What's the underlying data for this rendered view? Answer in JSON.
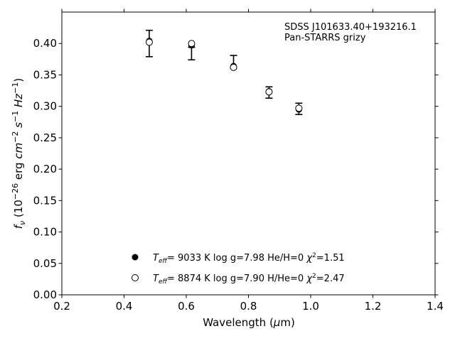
{
  "chart_data": {
    "type": "scatter",
    "annotation": {
      "object": "SDSS J101633.40+193216.1",
      "photometry": "Pan-STARRS grizy"
    },
    "xlabel": "Wavelength (μm)",
    "ylabel": "f_ν (10^-26 erg cm^-2 s^-1 Hz^-1)",
    "xlim": [
      0.2,
      1.4
    ],
    "ylim": [
      0.0,
      0.45
    ],
    "xticks": [
      "0.2",
      "0.4",
      "0.6",
      "0.8",
      "1.0",
      "1.2",
      "1.4"
    ],
    "yticks": [
      "0.00",
      "0.05",
      "0.10",
      "0.15",
      "0.20",
      "0.25",
      "0.30",
      "0.35",
      "0.40"
    ],
    "grid": false,
    "legend_placement": "lower-center",
    "observed": {
      "x": [
        0.481,
        0.617,
        0.752,
        0.866,
        0.962
      ],
      "y": [
        0.4,
        0.384,
        0.371,
        0.322,
        0.296
      ],
      "yerr": [
        0.021,
        0.01,
        0.01,
        0.009,
        0.009
      ]
    },
    "series": [
      {
        "name": "Teff= 9033 K log g=7.98 He/H=0 χ²=1.51",
        "legend_parts": {
          "temp": "9033 K",
          "logg": "log g=7.98",
          "comp": "He/H=0",
          "chisq": "=1.51"
        },
        "marker": "filled",
        "x": [
          0.481,
          0.617,
          0.752,
          0.866,
          0.962
        ],
        "y": [
          0.404,
          0.397,
          0.364,
          0.324,
          0.295
        ]
      },
      {
        "name": "Teff= 8874 K log g=7.90 H/He=0 χ²=2.47",
        "legend_parts": {
          "temp": "8874 K",
          "logg": "log g=7.90",
          "comp": "H/He=0",
          "chisq": "=2.47"
        },
        "marker": "open",
        "x": [
          0.481,
          0.617,
          0.752,
          0.866,
          0.962
        ],
        "y": [
          0.402,
          0.4,
          0.362,
          0.323,
          0.297
        ]
      }
    ]
  }
}
